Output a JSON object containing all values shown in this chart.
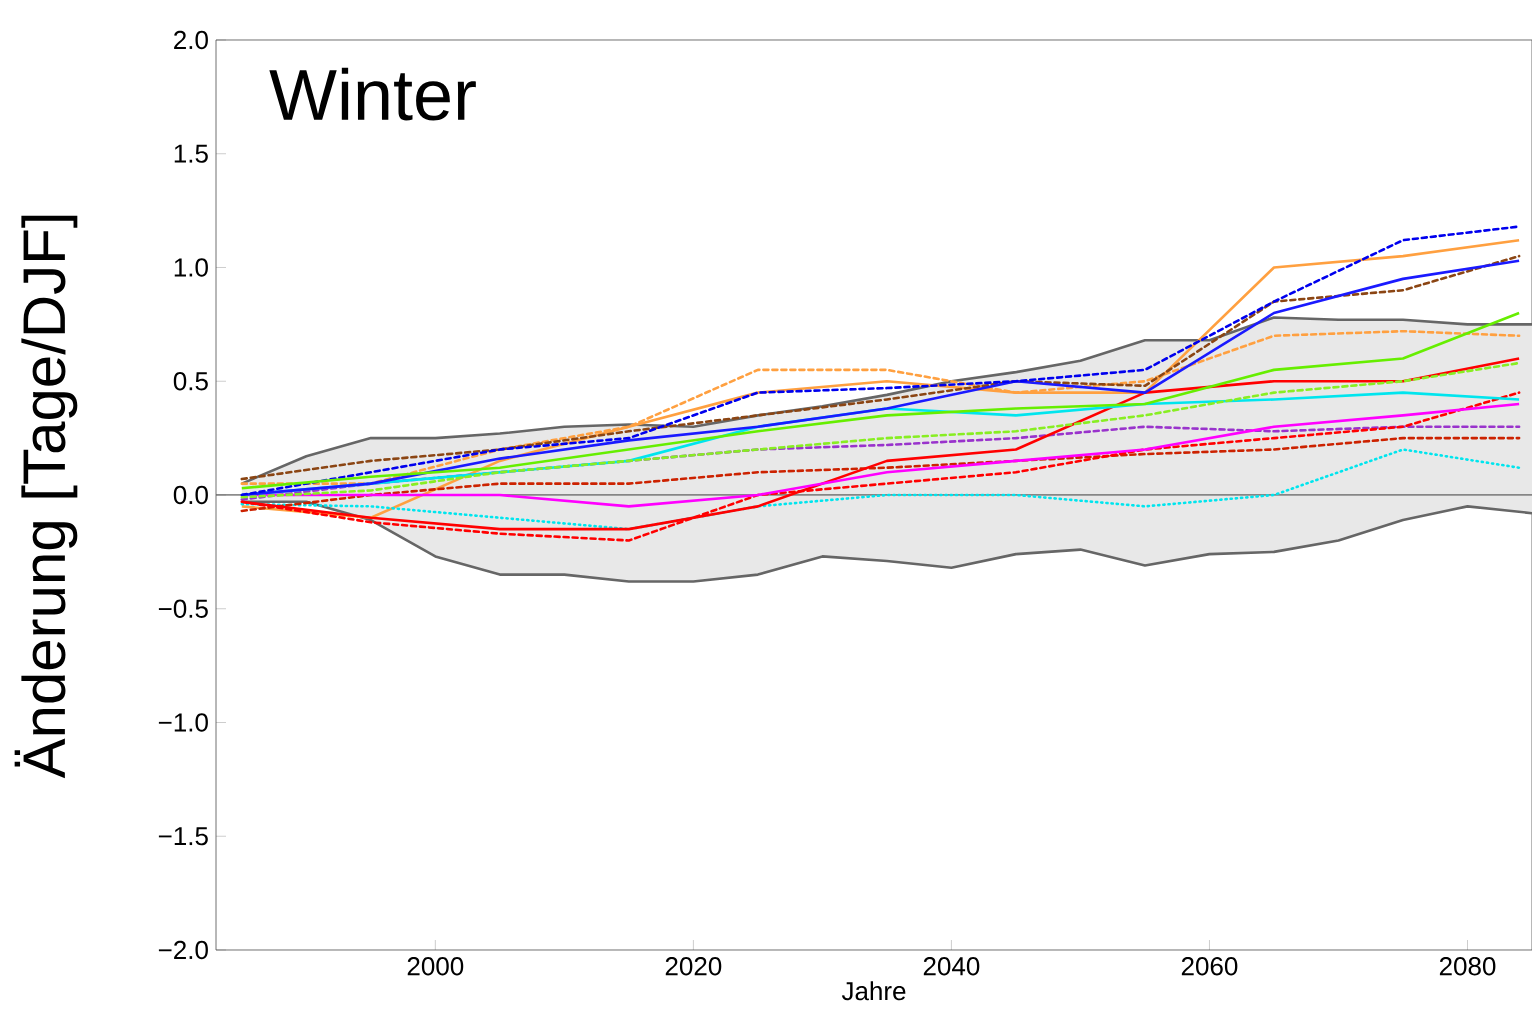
{
  "chart_data": {
    "type": "line",
    "xlabel": "Jahre",
    "ylabel": "Änderung [Tage/DJF]",
    "annotations": [
      "Winter"
    ],
    "x": [
      1985,
      1995,
      2005,
      2015,
      2025,
      2035,
      2045,
      2055,
      2065,
      2075,
      2084
    ],
    "xlim": [
      1983,
      2085
    ],
    "ylim": [
      -2,
      2
    ],
    "xticks": [
      2000,
      2020,
      2040,
      2060,
      2080
    ],
    "yticks": [
      {
        "value": -2,
        "label": "−2.0"
      },
      {
        "value": -1.5,
        "label": "−1.5"
      },
      {
        "value": -1,
        "label": "−1.0"
      },
      {
        "value": -0.5,
        "label": "−0.5"
      },
      {
        "value": 0,
        "label": "0.0"
      },
      {
        "value": 0.5,
        "label": "0.5"
      },
      {
        "value": 1,
        "label": "1.0"
      },
      {
        "value": 1.5,
        "label": "1.5"
      },
      {
        "value": 2,
        "label": "2.0"
      }
    ],
    "grid": false,
    "ref_lines": [
      {
        "axis": "y",
        "value": 0,
        "color": "#666666"
      }
    ],
    "series": [
      {
        "color": "#666666",
        "x": [
          1985,
          1990,
          1995,
          2000,
          2005,
          2010,
          2015,
          2020,
          2025,
          2030,
          2035,
          2040,
          2045,
          2050,
          2055,
          2060,
          2065,
          2070,
          2075,
          2080,
          2085
        ],
        "values": [
          0.05,
          0.17,
          0.25,
          0.25,
          0.27,
          0.3,
          0.31,
          0.3,
          0.35,
          0.39,
          0.44,
          0.5,
          0.54,
          0.59,
          0.68,
          0.68,
          0.78,
          0.77,
          0.77,
          0.75,
          0.75
        ],
        "lower": [
          -0.03,
          -0.03,
          -0.11,
          -0.27,
          -0.35,
          -0.35,
          -0.38,
          -0.38,
          -0.35,
          -0.27,
          -0.29,
          -0.32,
          -0.26,
          -0.24,
          -0.31,
          -0.26,
          -0.25,
          -0.2,
          -0.11,
          -0.05,
          -0.08
        ],
        "upper": [
          0.05,
          0.17,
          0.25,
          0.25,
          0.27,
          0.3,
          0.31,
          0.3,
          0.35,
          0.39,
          0.44,
          0.5,
          0.54,
          0.59,
          0.68,
          0.68,
          0.78,
          0.77,
          0.77,
          0.75,
          0.75
        ],
        "line_style": "solid"
      },
      {
        "color": "#666666",
        "x": [
          1985,
          1990,
          1995,
          2000,
          2005,
          2010,
          2015,
          2020,
          2025,
          2030,
          2035,
          2040,
          2045,
          2050,
          2055,
          2060,
          2065,
          2070,
          2075,
          2080,
          2085
        ],
        "values": [
          -0.03,
          -0.03,
          -0.11,
          -0.27,
          -0.35,
          -0.35,
          -0.38,
          -0.38,
          -0.35,
          -0.27,
          -0.29,
          -0.32,
          -0.26,
          -0.24,
          -0.31,
          -0.26,
          -0.25,
          -0.2,
          -0.11,
          -0.05,
          -0.08
        ],
        "line_style": "solid"
      },
      {
        "color": "#ffa040",
        "values": [
          0.05,
          0.05,
          0.2,
          0.3,
          0.55,
          0.55,
          0.45,
          0.5,
          0.7,
          0.72,
          0.7
        ],
        "line_style": "dashed"
      },
      {
        "color": "#ffa040",
        "values": [
          -0.05,
          -0.1,
          0.15,
          0.3,
          0.45,
          0.5,
          0.45,
          0.45,
          1.0,
          1.05,
          1.12
        ],
        "line_style": "solid"
      },
      {
        "color": "#8b4513",
        "values": [
          0.07,
          0.15,
          0.2,
          0.28,
          0.35,
          0.42,
          0.5,
          0.48,
          0.85,
          0.9,
          1.05
        ],
        "line_style": "dashed"
      },
      {
        "color": "#00e5ee",
        "values": [
          -0.04,
          -0.05,
          -0.1,
          -0.15,
          -0.05,
          0.0,
          0.0,
          -0.05,
          0.0,
          0.2,
          0.12
        ],
        "line_style": "dotted"
      },
      {
        "color": "#cc2200",
        "values": [
          -0.07,
          0.0,
          0.05,
          0.05,
          0.1,
          0.12,
          0.15,
          0.18,
          0.2,
          0.25,
          0.25
        ],
        "line_style": "dashed"
      },
      {
        "color": "#9933cc",
        "values": [
          -0.02,
          0.05,
          0.1,
          0.15,
          0.2,
          0.22,
          0.25,
          0.3,
          0.28,
          0.3,
          0.3
        ],
        "line_style": "dashed"
      },
      {
        "color": "#ff0000",
        "values": [
          -0.03,
          -0.12,
          -0.17,
          -0.2,
          0.0,
          0.05,
          0.1,
          0.2,
          0.25,
          0.3,
          0.45
        ],
        "line_style": "dashed"
      },
      {
        "color": "#ff0000",
        "values": [
          -0.03,
          -0.1,
          -0.15,
          -0.15,
          -0.05,
          0.15,
          0.2,
          0.45,
          0.5,
          0.5,
          0.6
        ],
        "line_style": "solid"
      },
      {
        "color": "#ff00ff",
        "values": [
          0.0,
          0.0,
          0.0,
          -0.05,
          0.0,
          0.1,
          0.15,
          0.2,
          0.3,
          0.35,
          0.4
        ],
        "line_style": "solid"
      },
      {
        "color": "#00e5ee",
        "values": [
          0.0,
          0.05,
          0.1,
          0.15,
          0.3,
          0.38,
          0.35,
          0.4,
          0.42,
          0.45,
          0.42
        ],
        "line_style": "solid"
      },
      {
        "color": "#1a1aff",
        "values": [
          0.0,
          0.05,
          0.16,
          0.24,
          0.3,
          0.38,
          0.5,
          0.45,
          0.8,
          0.95,
          1.03
        ],
        "line_style": "solid"
      },
      {
        "color": "#0000ee",
        "values": [
          0.0,
          0.1,
          0.2,
          0.25,
          0.45,
          0.47,
          0.5,
          0.55,
          0.85,
          1.12,
          1.18
        ],
        "line_style": "dashed"
      },
      {
        "color": "#88ee22",
        "values": [
          -0.01,
          0.02,
          0.1,
          0.15,
          0.2,
          0.25,
          0.28,
          0.35,
          0.45,
          0.5,
          0.58
        ],
        "line_style": "dashed"
      },
      {
        "color": "#66ee00",
        "values": [
          0.03,
          0.08,
          0.12,
          0.2,
          0.28,
          0.35,
          0.38,
          0.4,
          0.55,
          0.6,
          0.8
        ],
        "line_style": "solid"
      }
    ]
  }
}
